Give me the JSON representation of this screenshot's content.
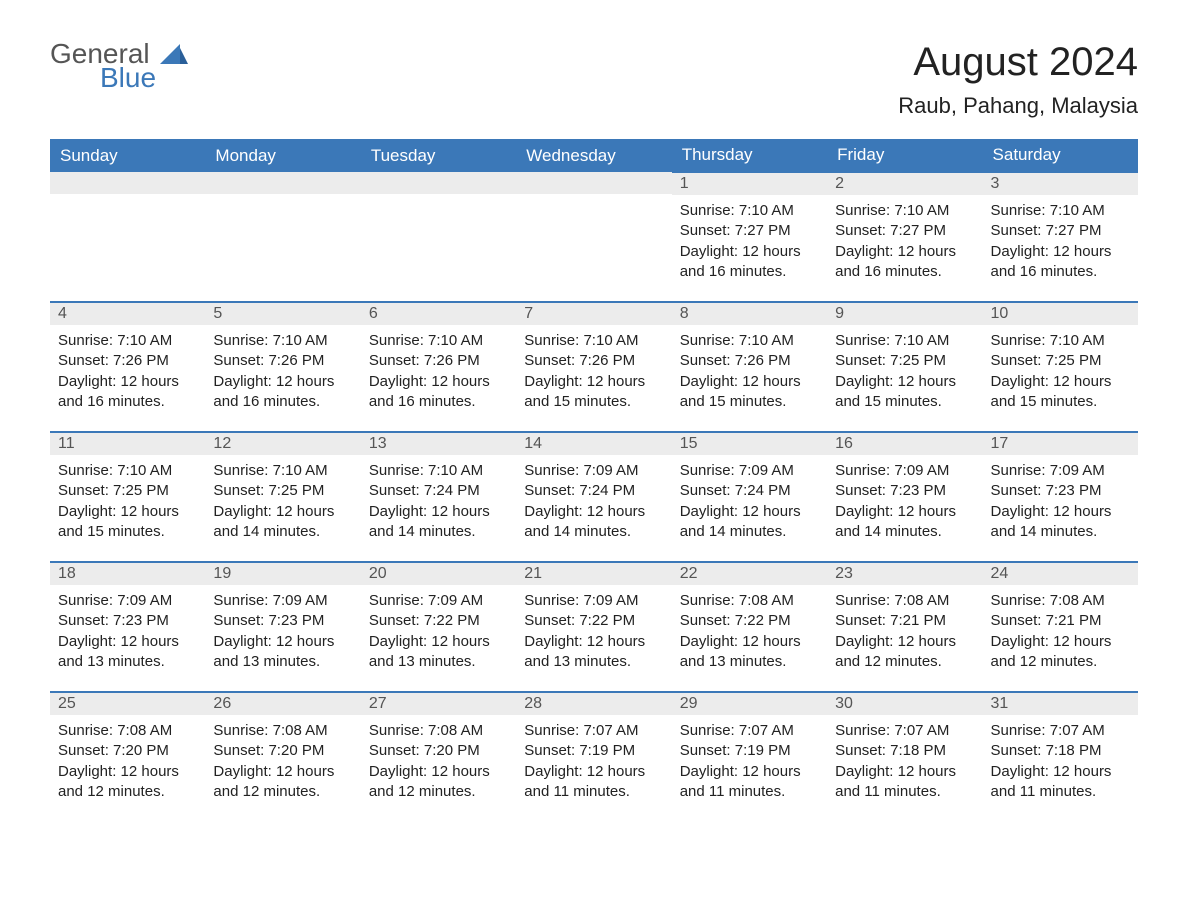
{
  "logo": {
    "general": "General",
    "blue": "Blue"
  },
  "title": {
    "month": "August 2024",
    "location": "Raub, Pahang, Malaysia"
  },
  "colors": {
    "header_bg": "#3b78b8",
    "header_text": "#ffffff",
    "daynum_bg": "#ececec",
    "daynum_text": "#555555",
    "body_text": "#222222",
    "border_top": "#3b78b8",
    "logo_gray": "#555555",
    "logo_blue": "#3b78b8",
    "page_bg": "#ffffff"
  },
  "weekdays": [
    "Sunday",
    "Monday",
    "Tuesday",
    "Wednesday",
    "Thursday",
    "Friday",
    "Saturday"
  ],
  "weeks": [
    [
      null,
      null,
      null,
      null,
      {
        "num": "1",
        "sunrise": "7:10 AM",
        "sunset": "7:27 PM",
        "daylight": "12 hours and 16 minutes."
      },
      {
        "num": "2",
        "sunrise": "7:10 AM",
        "sunset": "7:27 PM",
        "daylight": "12 hours and 16 minutes."
      },
      {
        "num": "3",
        "sunrise": "7:10 AM",
        "sunset": "7:27 PM",
        "daylight": "12 hours and 16 minutes."
      }
    ],
    [
      {
        "num": "4",
        "sunrise": "7:10 AM",
        "sunset": "7:26 PM",
        "daylight": "12 hours and 16 minutes."
      },
      {
        "num": "5",
        "sunrise": "7:10 AM",
        "sunset": "7:26 PM",
        "daylight": "12 hours and 16 minutes."
      },
      {
        "num": "6",
        "sunrise": "7:10 AM",
        "sunset": "7:26 PM",
        "daylight": "12 hours and 16 minutes."
      },
      {
        "num": "7",
        "sunrise": "7:10 AM",
        "sunset": "7:26 PM",
        "daylight": "12 hours and 15 minutes."
      },
      {
        "num": "8",
        "sunrise": "7:10 AM",
        "sunset": "7:26 PM",
        "daylight": "12 hours and 15 minutes."
      },
      {
        "num": "9",
        "sunrise": "7:10 AM",
        "sunset": "7:25 PM",
        "daylight": "12 hours and 15 minutes."
      },
      {
        "num": "10",
        "sunrise": "7:10 AM",
        "sunset": "7:25 PM",
        "daylight": "12 hours and 15 minutes."
      }
    ],
    [
      {
        "num": "11",
        "sunrise": "7:10 AM",
        "sunset": "7:25 PM",
        "daylight": "12 hours and 15 minutes."
      },
      {
        "num": "12",
        "sunrise": "7:10 AM",
        "sunset": "7:25 PM",
        "daylight": "12 hours and 14 minutes."
      },
      {
        "num": "13",
        "sunrise": "7:10 AM",
        "sunset": "7:24 PM",
        "daylight": "12 hours and 14 minutes."
      },
      {
        "num": "14",
        "sunrise": "7:09 AM",
        "sunset": "7:24 PM",
        "daylight": "12 hours and 14 minutes."
      },
      {
        "num": "15",
        "sunrise": "7:09 AM",
        "sunset": "7:24 PM",
        "daylight": "12 hours and 14 minutes."
      },
      {
        "num": "16",
        "sunrise": "7:09 AM",
        "sunset": "7:23 PM",
        "daylight": "12 hours and 14 minutes."
      },
      {
        "num": "17",
        "sunrise": "7:09 AM",
        "sunset": "7:23 PM",
        "daylight": "12 hours and 14 minutes."
      }
    ],
    [
      {
        "num": "18",
        "sunrise": "7:09 AM",
        "sunset": "7:23 PM",
        "daylight": "12 hours and 13 minutes."
      },
      {
        "num": "19",
        "sunrise": "7:09 AM",
        "sunset": "7:23 PM",
        "daylight": "12 hours and 13 minutes."
      },
      {
        "num": "20",
        "sunrise": "7:09 AM",
        "sunset": "7:22 PM",
        "daylight": "12 hours and 13 minutes."
      },
      {
        "num": "21",
        "sunrise": "7:09 AM",
        "sunset": "7:22 PM",
        "daylight": "12 hours and 13 minutes."
      },
      {
        "num": "22",
        "sunrise": "7:08 AM",
        "sunset": "7:22 PM",
        "daylight": "12 hours and 13 minutes."
      },
      {
        "num": "23",
        "sunrise": "7:08 AM",
        "sunset": "7:21 PM",
        "daylight": "12 hours and 12 minutes."
      },
      {
        "num": "24",
        "sunrise": "7:08 AM",
        "sunset": "7:21 PM",
        "daylight": "12 hours and 12 minutes."
      }
    ],
    [
      {
        "num": "25",
        "sunrise": "7:08 AM",
        "sunset": "7:20 PM",
        "daylight": "12 hours and 12 minutes."
      },
      {
        "num": "26",
        "sunrise": "7:08 AM",
        "sunset": "7:20 PM",
        "daylight": "12 hours and 12 minutes."
      },
      {
        "num": "27",
        "sunrise": "7:08 AM",
        "sunset": "7:20 PM",
        "daylight": "12 hours and 12 minutes."
      },
      {
        "num": "28",
        "sunrise": "7:07 AM",
        "sunset": "7:19 PM",
        "daylight": "12 hours and 11 minutes."
      },
      {
        "num": "29",
        "sunrise": "7:07 AM",
        "sunset": "7:19 PM",
        "daylight": "12 hours and 11 minutes."
      },
      {
        "num": "30",
        "sunrise": "7:07 AM",
        "sunset": "7:18 PM",
        "daylight": "12 hours and 11 minutes."
      },
      {
        "num": "31",
        "sunrise": "7:07 AM",
        "sunset": "7:18 PM",
        "daylight": "12 hours and 11 minutes."
      }
    ]
  ],
  "labels": {
    "sunrise": "Sunrise:",
    "sunset": "Sunset:",
    "daylight": "Daylight:"
  }
}
